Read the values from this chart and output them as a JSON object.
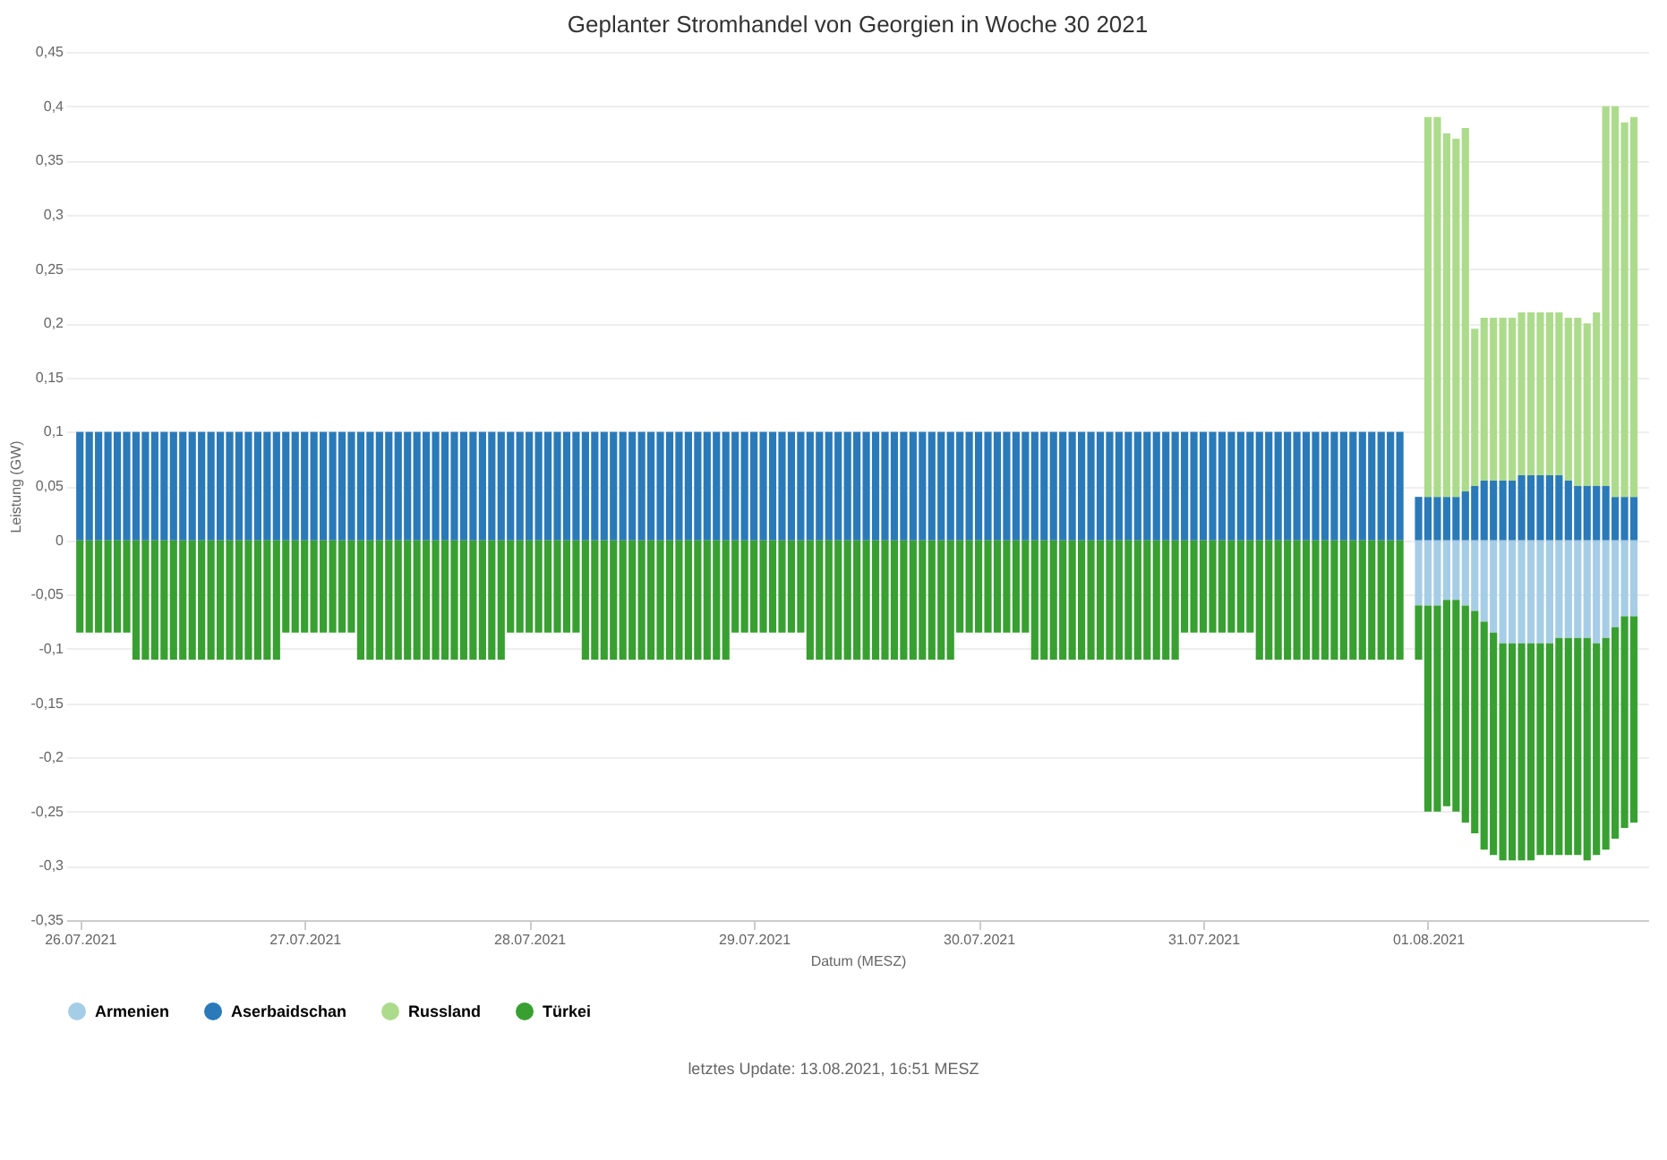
{
  "chart_data": {
    "type": "bar",
    "title": "Geplanter Stromhandel von Georgien in Woche 30 2021",
    "xlabel": "Datum (MESZ)",
    "ylabel": "Leistung (GW)",
    "x": [
      "2021-07-26T00:00",
      "2021-07-26T01:00",
      "2021-07-26T02:00",
      "2021-07-26T03:00",
      "2021-07-26T04:00",
      "2021-07-26T05:00",
      "2021-07-26T06:00",
      "2021-07-26T07:00",
      "2021-07-26T08:00",
      "2021-07-26T09:00",
      "2021-07-26T10:00",
      "2021-07-26T11:00",
      "2021-07-26T12:00",
      "2021-07-26T13:00",
      "2021-07-26T14:00",
      "2021-07-26T15:00",
      "2021-07-26T16:00",
      "2021-07-26T17:00",
      "2021-07-26T18:00",
      "2021-07-26T19:00",
      "2021-07-26T20:00",
      "2021-07-26T21:00",
      "2021-07-26T22:00",
      "2021-07-26T23:00",
      "2021-07-27T00:00",
      "2021-07-27T01:00",
      "2021-07-27T02:00",
      "2021-07-27T03:00",
      "2021-07-27T04:00",
      "2021-07-27T05:00",
      "2021-07-27T06:00",
      "2021-07-27T07:00",
      "2021-07-27T08:00",
      "2021-07-27T09:00",
      "2021-07-27T10:00",
      "2021-07-27T11:00",
      "2021-07-27T12:00",
      "2021-07-27T13:00",
      "2021-07-27T14:00",
      "2021-07-27T15:00",
      "2021-07-27T16:00",
      "2021-07-27T17:00",
      "2021-07-27T18:00",
      "2021-07-27T19:00",
      "2021-07-27T20:00",
      "2021-07-27T21:00",
      "2021-07-27T22:00",
      "2021-07-27T23:00",
      "2021-07-28T00:00",
      "2021-07-28T01:00",
      "2021-07-28T02:00",
      "2021-07-28T03:00",
      "2021-07-28T04:00",
      "2021-07-28T05:00",
      "2021-07-28T06:00",
      "2021-07-28T07:00",
      "2021-07-28T08:00",
      "2021-07-28T09:00",
      "2021-07-28T10:00",
      "2021-07-28T11:00",
      "2021-07-28T12:00",
      "2021-07-28T13:00",
      "2021-07-28T14:00",
      "2021-07-28T15:00",
      "2021-07-28T16:00",
      "2021-07-28T17:00",
      "2021-07-28T18:00",
      "2021-07-28T19:00",
      "2021-07-28T20:00",
      "2021-07-28T21:00",
      "2021-07-28T22:00",
      "2021-07-28T23:00",
      "2021-07-29T00:00",
      "2021-07-29T01:00",
      "2021-07-29T02:00",
      "2021-07-29T03:00",
      "2021-07-29T04:00",
      "2021-07-29T05:00",
      "2021-07-29T06:00",
      "2021-07-29T07:00",
      "2021-07-29T08:00",
      "2021-07-29T09:00",
      "2021-07-29T10:00",
      "2021-07-29T11:00",
      "2021-07-29T12:00",
      "2021-07-29T13:00",
      "2021-07-29T14:00",
      "2021-07-29T15:00",
      "2021-07-29T16:00",
      "2021-07-29T17:00",
      "2021-07-29T18:00",
      "2021-07-29T19:00",
      "2021-07-29T20:00",
      "2021-07-29T21:00",
      "2021-07-29T22:00",
      "2021-07-29T23:00",
      "2021-07-30T00:00",
      "2021-07-30T01:00",
      "2021-07-30T02:00",
      "2021-07-30T03:00",
      "2021-07-30T04:00",
      "2021-07-30T05:00",
      "2021-07-30T06:00",
      "2021-07-30T07:00",
      "2021-07-30T08:00",
      "2021-07-30T09:00",
      "2021-07-30T10:00",
      "2021-07-30T11:00",
      "2021-07-30T12:00",
      "2021-07-30T13:00",
      "2021-07-30T14:00",
      "2021-07-30T15:00",
      "2021-07-30T16:00",
      "2021-07-30T17:00",
      "2021-07-30T18:00",
      "2021-07-30T19:00",
      "2021-07-30T20:00",
      "2021-07-30T21:00",
      "2021-07-30T22:00",
      "2021-07-30T23:00",
      "2021-07-31T00:00",
      "2021-07-31T01:00",
      "2021-07-31T02:00",
      "2021-07-31T03:00",
      "2021-07-31T04:00",
      "2021-07-31T05:00",
      "2021-07-31T06:00",
      "2021-07-31T07:00",
      "2021-07-31T08:00",
      "2021-07-31T09:00",
      "2021-07-31T10:00",
      "2021-07-31T11:00",
      "2021-07-31T12:00",
      "2021-07-31T13:00",
      "2021-07-31T14:00",
      "2021-07-31T15:00",
      "2021-07-31T16:00",
      "2021-07-31T17:00",
      "2021-07-31T18:00",
      "2021-07-31T19:00",
      "2021-07-31T20:00",
      "2021-07-31T21:00",
      "2021-07-31T23:00",
      "2021-08-01T00:00",
      "2021-08-01T01:00",
      "2021-08-01T02:00",
      "2021-08-01T03:00",
      "2021-08-01T04:00",
      "2021-08-01T05:00",
      "2021-08-01T06:00",
      "2021-08-01T07:00",
      "2021-08-01T08:00",
      "2021-08-01T09:00",
      "2021-08-01T10:00",
      "2021-08-01T11:00",
      "2021-08-01T12:00",
      "2021-08-01T13:00",
      "2021-08-01T14:00",
      "2021-08-01T15:00",
      "2021-08-01T16:00",
      "2021-08-01T17:00",
      "2021-08-01T18:00",
      "2021-08-01T19:00",
      "2021-08-01T20:00",
      "2021-08-01T21:00",
      "2021-08-01T22:00"
    ],
    "stacked": true,
    "series": [
      {
        "name": "Armenien",
        "color": "#a6cde6",
        "values": [
          null,
          null,
          null,
          null,
          null,
          null,
          null,
          null,
          null,
          null,
          null,
          null,
          null,
          null,
          null,
          null,
          null,
          null,
          null,
          null,
          null,
          null,
          null,
          null,
          null,
          null,
          null,
          null,
          null,
          null,
          null,
          null,
          null,
          null,
          null,
          null,
          null,
          null,
          null,
          null,
          null,
          null,
          null,
          null,
          null,
          null,
          null,
          null,
          null,
          null,
          null,
          null,
          null,
          null,
          null,
          null,
          null,
          null,
          null,
          null,
          null,
          null,
          null,
          null,
          null,
          null,
          null,
          null,
          null,
          null,
          null,
          null,
          null,
          null,
          null,
          null,
          null,
          null,
          null,
          null,
          null,
          null,
          null,
          null,
          null,
          null,
          null,
          null,
          null,
          null,
          null,
          null,
          null,
          null,
          null,
          null,
          null,
          null,
          null,
          null,
          null,
          null,
          null,
          null,
          null,
          null,
          null,
          null,
          null,
          null,
          null,
          null,
          null,
          null,
          null,
          null,
          null,
          null,
          null,
          null,
          null,
          null,
          null,
          null,
          null,
          null,
          null,
          null,
          null,
          null,
          null,
          null,
          null,
          null,
          null,
          null,
          null,
          null,
          null,
          null,
          null,
          null,
          -0.06,
          -0.06,
          -0.06,
          -0.055,
          -0.055,
          -0.06,
          -0.065,
          -0.075,
          -0.085,
          -0.095,
          -0.095,
          -0.095,
          -0.095,
          -0.095,
          -0.095,
          -0.09,
          -0.09,
          -0.09,
          -0.09,
          -0.095,
          -0.09,
          -0.08,
          -0.07,
          -0.07
        ]
      },
      {
        "name": "Aserbaidschan",
        "color": "#2a7ab9",
        "values": [
          0.1,
          0.1,
          0.1,
          0.1,
          0.1,
          0.1,
          0.1,
          0.1,
          0.1,
          0.1,
          0.1,
          0.1,
          0.1,
          0.1,
          0.1,
          0.1,
          0.1,
          0.1,
          0.1,
          0.1,
          0.1,
          0.1,
          0.1,
          0.1,
          0.1,
          0.1,
          0.1,
          0.1,
          0.1,
          0.1,
          0.1,
          0.1,
          0.1,
          0.1,
          0.1,
          0.1,
          0.1,
          0.1,
          0.1,
          0.1,
          0.1,
          0.1,
          0.1,
          0.1,
          0.1,
          0.1,
          0.1,
          0.1,
          0.1,
          0.1,
          0.1,
          0.1,
          0.1,
          0.1,
          0.1,
          0.1,
          0.1,
          0.1,
          0.1,
          0.1,
          0.1,
          0.1,
          0.1,
          0.1,
          0.1,
          0.1,
          0.1,
          0.1,
          0.1,
          0.1,
          0.1,
          0.1,
          0.1,
          0.1,
          0.1,
          0.1,
          0.1,
          0.1,
          0.1,
          0.1,
          0.1,
          0.1,
          0.1,
          0.1,
          0.1,
          0.1,
          0.1,
          0.1,
          0.1,
          0.1,
          0.1,
          0.1,
          0.1,
          0.1,
          0.1,
          0.1,
          0.1,
          0.1,
          0.1,
          0.1,
          0.1,
          0.1,
          0.1,
          0.1,
          0.1,
          0.1,
          0.1,
          0.1,
          0.1,
          0.1,
          0.1,
          0.1,
          0.1,
          0.1,
          0.1,
          0.1,
          0.1,
          0.1,
          0.1,
          0.1,
          0.1,
          0.1,
          0.1,
          0.1,
          0.1,
          0.1,
          0.1,
          0.1,
          0.1,
          0.1,
          0.1,
          0.1,
          0.1,
          0.1,
          0.1,
          0.1,
          0.1,
          0.1,
          0.1,
          0.1,
          0.1,
          0.1,
          0.04,
          0.04,
          0.04,
          0.04,
          0.04,
          0.045,
          0.05,
          0.055,
          0.055,
          0.055,
          0.055,
          0.06,
          0.06,
          0.06,
          0.06,
          0.06,
          0.055,
          0.05,
          0.05,
          0.05,
          0.05,
          0.04,
          0.04,
          0.04
        ]
      },
      {
        "name": "Russland",
        "color": "#addb8c",
        "values": [
          null,
          null,
          null,
          null,
          null,
          null,
          null,
          null,
          null,
          null,
          null,
          null,
          null,
          null,
          null,
          null,
          null,
          null,
          null,
          null,
          null,
          null,
          null,
          null,
          null,
          null,
          null,
          null,
          null,
          null,
          null,
          null,
          null,
          null,
          null,
          null,
          null,
          null,
          null,
          null,
          null,
          null,
          null,
          null,
          null,
          null,
          null,
          null,
          null,
          null,
          null,
          null,
          null,
          null,
          null,
          null,
          null,
          null,
          null,
          null,
          null,
          null,
          null,
          null,
          null,
          null,
          null,
          null,
          null,
          null,
          null,
          null,
          null,
          null,
          null,
          null,
          null,
          null,
          null,
          null,
          null,
          null,
          null,
          null,
          null,
          null,
          null,
          null,
          null,
          null,
          null,
          null,
          null,
          null,
          null,
          null,
          null,
          null,
          null,
          null,
          null,
          null,
          null,
          null,
          null,
          null,
          null,
          null,
          null,
          null,
          null,
          null,
          null,
          null,
          null,
          null,
          null,
          null,
          null,
          null,
          null,
          null,
          null,
          null,
          null,
          null,
          null,
          null,
          null,
          null,
          null,
          null,
          null,
          null,
          null,
          null,
          null,
          null,
          null,
          null,
          null,
          null,
          null,
          0.35,
          0.35,
          0.335,
          0.33,
          0.335,
          0.145,
          0.15,
          0.15,
          0.15,
          0.15,
          0.15,
          0.15,
          0.15,
          0.15,
          0.15,
          0.15,
          0.155,
          0.15,
          0.16,
          0.35,
          0.36,
          0.345,
          0.35
        ]
      },
      {
        "name": "Türkei",
        "color": "#38a031",
        "values": [
          -0.085,
          -0.085,
          -0.085,
          -0.085,
          -0.085,
          -0.085,
          -0.11,
          -0.11,
          -0.11,
          -0.11,
          -0.11,
          -0.11,
          -0.11,
          -0.11,
          -0.11,
          -0.11,
          -0.11,
          -0.11,
          -0.11,
          -0.11,
          -0.11,
          -0.11,
          -0.085,
          -0.085,
          -0.085,
          -0.085,
          -0.085,
          -0.085,
          -0.085,
          -0.085,
          -0.11,
          -0.11,
          -0.11,
          -0.11,
          -0.11,
          -0.11,
          -0.11,
          -0.11,
          -0.11,
          -0.11,
          -0.11,
          -0.11,
          -0.11,
          -0.11,
          -0.11,
          -0.11,
          -0.085,
          -0.085,
          -0.085,
          -0.085,
          -0.085,
          -0.085,
          -0.085,
          -0.085,
          -0.11,
          -0.11,
          -0.11,
          -0.11,
          -0.11,
          -0.11,
          -0.11,
          -0.11,
          -0.11,
          -0.11,
          -0.11,
          -0.11,
          -0.11,
          -0.11,
          -0.11,
          -0.11,
          -0.085,
          -0.085,
          -0.085,
          -0.085,
          -0.085,
          -0.085,
          -0.085,
          -0.085,
          -0.11,
          -0.11,
          -0.11,
          -0.11,
          -0.11,
          -0.11,
          -0.11,
          -0.11,
          -0.11,
          -0.11,
          -0.11,
          -0.11,
          -0.11,
          -0.11,
          -0.11,
          -0.11,
          -0.085,
          -0.085,
          -0.085,
          -0.085,
          -0.085,
          -0.085,
          -0.085,
          -0.085,
          -0.11,
          -0.11,
          -0.11,
          -0.11,
          -0.11,
          -0.11,
          -0.11,
          -0.11,
          -0.11,
          -0.11,
          -0.11,
          -0.11,
          -0.11,
          -0.11,
          -0.11,
          -0.11,
          -0.085,
          -0.085,
          -0.085,
          -0.085,
          -0.085,
          -0.085,
          -0.085,
          -0.085,
          -0.11,
          -0.11,
          -0.11,
          -0.11,
          -0.11,
          -0.11,
          -0.11,
          -0.11,
          -0.11,
          -0.11,
          -0.11,
          -0.11,
          -0.11,
          -0.11,
          -0.11,
          -0.11,
          -0.05,
          -0.19,
          -0.19,
          -0.19,
          -0.195,
          -0.2,
          -0.205,
          -0.21,
          -0.205,
          -0.2,
          -0.2,
          -0.2,
          -0.2,
          -0.195,
          -0.195,
          -0.2,
          -0.2,
          -0.2,
          -0.205,
          -0.195,
          -0.195,
          -0.195,
          -0.195,
          -0.19
        ]
      }
    ],
    "xlim": [
      "2021-07-25T23:30",
      "2021-08-01T22:40"
    ],
    "xticks": [
      {
        "value": "2021-07-26",
        "label": "26.07.2021"
      },
      {
        "value": "2021-07-27",
        "label": "27.07.2021"
      },
      {
        "value": "2021-07-28",
        "label": "28.07.2021"
      },
      {
        "value": "2021-07-29",
        "label": "29.07.2021"
      },
      {
        "value": "2021-07-30",
        "label": "30.07.2021"
      },
      {
        "value": "2021-07-31",
        "label": "31.07.2021"
      },
      {
        "value": "2021-08-01",
        "label": "01.08.2021"
      }
    ],
    "ylim": [
      -0.35,
      0.45
    ],
    "yticks": [
      {
        "value": -0.35,
        "label": "-0,35"
      },
      {
        "value": -0.3,
        "label": "-0,3"
      },
      {
        "value": -0.25,
        "label": "-0,25"
      },
      {
        "value": -0.2,
        "label": "-0,2"
      },
      {
        "value": -0.15,
        "label": "-0,15"
      },
      {
        "value": -0.1,
        "label": "-0,1"
      },
      {
        "value": -0.05,
        "label": "-0,05"
      },
      0,
      {
        "value": 0.05,
        "label": "0,05"
      },
      {
        "value": 0.1,
        "label": "0,1"
      },
      {
        "value": 0.15,
        "label": "0,15"
      },
      {
        "value": 0.2,
        "label": "0,2"
      },
      {
        "value": 0.25,
        "label": "0,25"
      },
      {
        "value": 0.3,
        "label": "0,3"
      },
      {
        "value": 0.35,
        "label": "0,35"
      },
      {
        "value": 0.4,
        "label": "0,4"
      },
      {
        "value": 0.45,
        "label": "0,45"
      }
    ],
    "grid": "y",
    "legend": "bottom",
    "annotations": [
      "letztes Update: 13.08.2021, 16:51 MESZ"
    ]
  }
}
